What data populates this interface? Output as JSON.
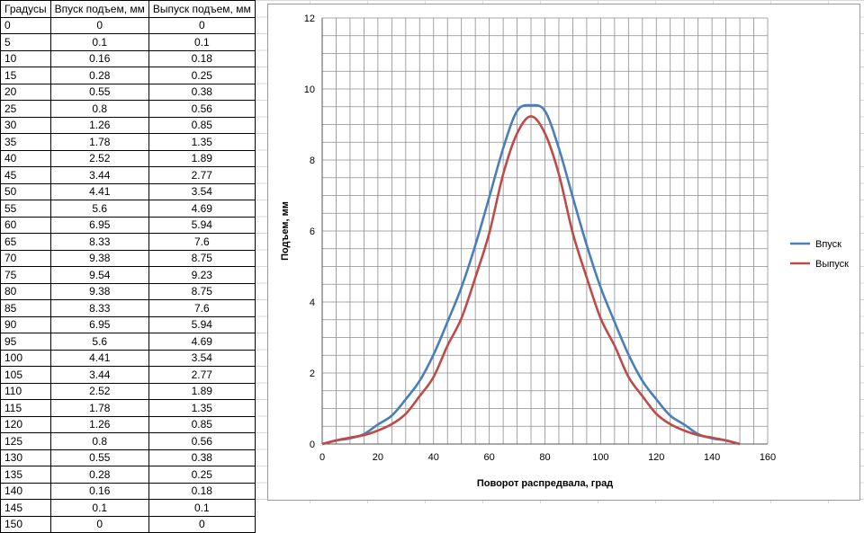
{
  "table": {
    "headers": [
      "Градусы",
      "Впуск подъем, мм",
      "Выпуск подъем, мм"
    ],
    "rows": [
      [
        "0",
        "0",
        "0"
      ],
      [
        "5",
        "0.1",
        "0.1"
      ],
      [
        "10",
        "0.16",
        "0.18"
      ],
      [
        "15",
        "0.28",
        "0.25"
      ],
      [
        "20",
        "0.55",
        "0.38"
      ],
      [
        "25",
        "0.8",
        "0.56"
      ],
      [
        "30",
        "1.26",
        "0.85"
      ],
      [
        "35",
        "1.78",
        "1.35"
      ],
      [
        "40",
        "2.52",
        "1.89"
      ],
      [
        "45",
        "3.44",
        "2.77"
      ],
      [
        "50",
        "4.41",
        "3.54"
      ],
      [
        "55",
        "5.6",
        "4.69"
      ],
      [
        "60",
        "6.95",
        "5.94"
      ],
      [
        "65",
        "8.33",
        "7.6"
      ],
      [
        "70",
        "9.38",
        "8.75"
      ],
      [
        "75",
        "9.54",
        "9.23"
      ],
      [
        "80",
        "9.38",
        "8.75"
      ],
      [
        "85",
        "8.33",
        "7.6"
      ],
      [
        "90",
        "6.95",
        "5.94"
      ],
      [
        "95",
        "5.6",
        "4.69"
      ],
      [
        "100",
        "4.41",
        "3.54"
      ],
      [
        "105",
        "3.44",
        "2.77"
      ],
      [
        "110",
        "2.52",
        "1.89"
      ],
      [
        "115",
        "1.78",
        "1.35"
      ],
      [
        "120",
        "1.26",
        "0.85"
      ],
      [
        "125",
        "0.8",
        "0.56"
      ],
      [
        "130",
        "0.55",
        "0.38"
      ],
      [
        "135",
        "0.28",
        "0.25"
      ],
      [
        "140",
        "0.16",
        "0.18"
      ],
      [
        "145",
        "0.1",
        "0.1"
      ],
      [
        "150",
        "0",
        "0"
      ]
    ]
  },
  "chart_data": {
    "type": "line",
    "title": "",
    "xlabel": "Поворот распредвала,  град",
    "ylabel": "Подъем, мм",
    "xlim": [
      0,
      160
    ],
    "ylim": [
      0,
      12
    ],
    "x_ticks": [
      0,
      20,
      40,
      60,
      80,
      100,
      120,
      140,
      160
    ],
    "y_ticks": [
      0,
      2,
      4,
      6,
      8,
      10,
      12
    ],
    "minor_grid_x": 5,
    "minor_grid_y": 1,
    "grid": true,
    "legend_position": "right",
    "x": [
      5,
      10,
      15,
      20,
      25,
      30,
      35,
      40,
      45,
      50,
      55,
      60,
      65,
      70,
      75,
      80,
      85,
      90,
      95,
      100,
      105,
      110,
      115,
      120,
      125,
      130,
      135,
      140,
      145,
      150
    ],
    "series": [
      {
        "name": "Впуск",
        "color": "#4a7ebb",
        "values": [
          0.1,
          0.16,
          0.28,
          0.55,
          0.8,
          1.26,
          1.78,
          2.52,
          3.44,
          4.41,
          5.6,
          6.95,
          8.33,
          9.38,
          9.54,
          9.38,
          8.33,
          6.95,
          5.6,
          4.41,
          3.44,
          2.52,
          1.78,
          1.26,
          0.8,
          0.55,
          0.28,
          0.16,
          0.1,
          0
        ]
      },
      {
        "name": "Выпуск",
        "color": "#be4b48",
        "values": [
          0.1,
          0.18,
          0.25,
          0.38,
          0.56,
          0.85,
          1.35,
          1.89,
          2.77,
          3.54,
          4.69,
          5.94,
          7.6,
          8.75,
          9.23,
          8.75,
          7.6,
          5.94,
          4.69,
          3.54,
          2.77,
          1.89,
          1.35,
          0.85,
          0.56,
          0.38,
          0.25,
          0.18,
          0.1,
          0
        ]
      }
    ]
  }
}
